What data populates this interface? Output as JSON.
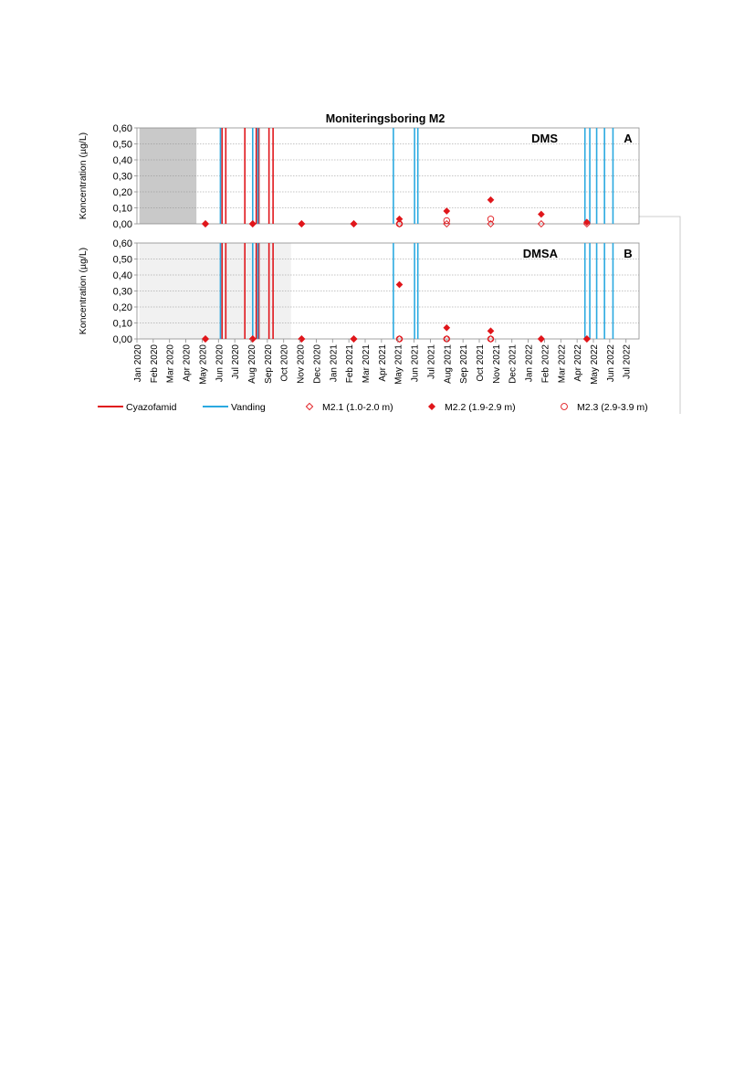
{
  "chart_data": {
    "type": "scatter",
    "title": "Moniteringsboring M2",
    "x_ticks": [
      "Jan 2020",
      "Feb 2020",
      "Mar 2020",
      "Apr 2020",
      "May 2020",
      "Jun 2020",
      "Jul 2020",
      "Aug 2020",
      "Sep 2020",
      "Oct 2020",
      "Nov 2020",
      "Dec 2020",
      "Jan 2021",
      "Feb 2021",
      "Mar 2021",
      "Apr 2021",
      "May 2021",
      "Jun 2021",
      "Jul 2021",
      "Aug 2021",
      "Sep 2021",
      "Oct 2021",
      "Nov 2021",
      "Dec 2021",
      "Jan 2022",
      "Feb 2022",
      "Mar 2022",
      "Apr 2022",
      "May 2022",
      "Jun 2022",
      "Jul 2022"
    ],
    "xlim": [
      0,
      30.8
    ],
    "y_ticks": [
      "0,00",
      "0,10",
      "0,20",
      "0,30",
      "0,40",
      "0,50",
      "0,60"
    ],
    "ylim": [
      0,
      0.6
    ],
    "grid": true,
    "legend_position": "bottom",
    "legend": [
      {
        "label": "Cyazofamid",
        "kind": "line",
        "color": "#e0161b"
      },
      {
        "label": "Vanding",
        "kind": "line",
        "color": "#2aa9e0"
      },
      {
        "label": "M2.1 (1.0-2.0 m)",
        "kind": "diamond-open",
        "color": "#e0161b"
      },
      {
        "label": "M2.2 (1.9-2.9 m)",
        "kind": "diamond-filled",
        "color": "#e0161b"
      },
      {
        "label": "M2.3 (2.9-3.9 m)",
        "kind": "circle-open",
        "color": "#e0161b"
      }
    ],
    "event_lines": {
      "cyazofamid": [
        5.22,
        5.45,
        6.62,
        7.32,
        7.48,
        8.1,
        8.35
      ],
      "vanding": [
        5.12,
        7.1,
        7.42,
        15.73,
        17.03,
        17.23,
        27.48,
        27.78,
        28.2,
        28.68,
        29.2
      ]
    },
    "panels": [
      {
        "label": "DMS",
        "letter": "A",
        "ylabel": "Koncentration (µg/L)",
        "shade": {
          "from": 0.15,
          "to": 3.65,
          "color": "#c9c9c9"
        },
        "series": [
          {
            "name": "M2.1 (1.0-2.0 m)",
            "marker": "diamond-open",
            "x": [
              4.2,
              7.1,
              10.1,
              13.3,
              16.1,
              19.0,
              21.7,
              24.8,
              27.6
            ],
            "y": [
              0.0,
              0.0,
              0.0,
              0.0,
              0.0,
              0.0,
              0.0,
              0.0,
              0.0
            ]
          },
          {
            "name": "M2.2 (1.9-2.9 m)",
            "marker": "diamond-filled",
            "x": [
              4.2,
              7.1,
              10.1,
              13.3,
              16.1,
              19.0,
              21.7,
              24.8,
              27.6
            ],
            "y": [
              0.0,
              0.0,
              0.0,
              0.0,
              0.03,
              0.08,
              0.15,
              0.06,
              0.01
            ]
          },
          {
            "name": "M2.3 (2.9-3.9 m)",
            "marker": "circle-open",
            "x": [
              16.1,
              19.0,
              21.7
            ],
            "y": [
              0.0,
              0.02,
              0.03
            ]
          }
        ]
      },
      {
        "label": "DMSA",
        "letter": "B",
        "ylabel": "Koncentration (µg/L)",
        "shade": {
          "from": 0.15,
          "to": 9.45,
          "color": "#f1f1f1"
        },
        "series": [
          {
            "name": "M2.1 (1.0-2.0 m)",
            "marker": "diamond-open",
            "x": [
              4.2,
              7.1,
              10.1,
              13.3,
              16.1,
              19.0,
              21.7,
              24.8,
              27.6
            ],
            "y": [
              0.0,
              0.0,
              0.0,
              0.0,
              0.0,
              0.0,
              0.0,
              0.0,
              0.0
            ]
          },
          {
            "name": "M2.2 (1.9-2.9 m)",
            "marker": "diamond-filled",
            "x": [
              4.2,
              7.1,
              10.1,
              13.3,
              16.1,
              19.0,
              21.7,
              24.8,
              27.6
            ],
            "y": [
              0.0,
              0.0,
              0.0,
              0.0,
              0.34,
              0.07,
              0.05,
              0.0,
              0.0
            ]
          },
          {
            "name": "M2.3 (2.9-3.9 m)",
            "marker": "circle-open",
            "x": [
              16.1,
              19.0,
              21.7
            ],
            "y": [
              0.0,
              0.0,
              0.0
            ]
          }
        ]
      }
    ]
  }
}
